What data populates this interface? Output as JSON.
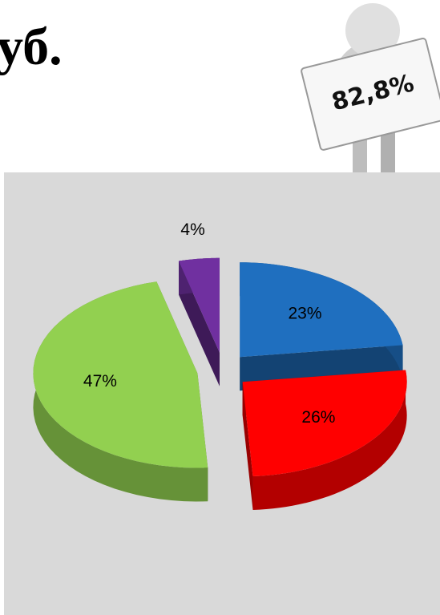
{
  "chart_data": {
    "type": "pie",
    "title": "уб.",
    "annotations": [
      "82,8%"
    ],
    "values": [
      23,
      26,
      47,
      4
    ],
    "value_labels": [
      "23%",
      "26%",
      "47%",
      "4%"
    ],
    "colors": [
      "#1f6fbf",
      "#ff0000",
      "#92d050",
      "#7030a0"
    ]
  }
}
